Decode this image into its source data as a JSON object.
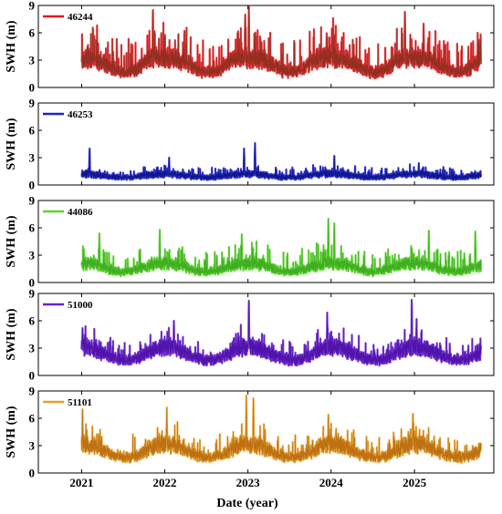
{
  "chart_data": {
    "type": "line",
    "xlabel": "Date (year)",
    "ylabel": "SWH (m)",
    "x_range": [
      "2020-06-25",
      "2025-12-15"
    ],
    "ylim": [
      0,
      9
    ],
    "x_ticks": [
      "2021",
      "2022",
      "2023",
      "2024",
      "2025"
    ],
    "y_ticks": [
      "0",
      "3",
      "6",
      "9"
    ],
    "grid": false,
    "legend_position": "top-left",
    "panels": [
      {
        "series_name": "46244",
        "color": "#e8171d",
        "line_color": "#8b2d1e",
        "start": "2021-01-01",
        "end": "2025-10-20",
        "monthly_mean": [
          3.1,
          3.0,
          2.9,
          2.5,
          2.1,
          1.6,
          1.4,
          1.4,
          1.8,
          2.5,
          3.0,
          3.2
        ],
        "amplitude": 1.3,
        "peaks": [
          {
            "date": "2021-11-10",
            "value": 8.5
          },
          {
            "date": "2022-12-20",
            "value": 8.0
          },
          {
            "date": "2023-01-05",
            "value": 8.9
          },
          {
            "date": "2024-01-10",
            "value": 7.6
          },
          {
            "date": "2024-11-20",
            "value": 8.3
          },
          {
            "date": "2025-02-10",
            "value": 7.0
          }
        ]
      },
      {
        "series_name": "46253",
        "color": "#1f22cc",
        "line_color": "#0a1288",
        "start": "2021-01-01",
        "end": "2025-10-20",
        "monthly_mean": [
          1.2,
          1.2,
          1.1,
          1.0,
          0.9,
          0.8,
          0.8,
          0.8,
          0.9,
          1.0,
          1.1,
          1.2
        ],
        "amplitude": 0.35,
        "peaks": [
          {
            "date": "2021-02-05",
            "value": 4.0
          },
          {
            "date": "2022-01-20",
            "value": 3.0
          },
          {
            "date": "2022-12-15",
            "value": 4.0
          },
          {
            "date": "2023-02-01",
            "value": 4.6
          },
          {
            "date": "2024-01-15",
            "value": 3.2
          },
          {
            "date": "2025-01-20",
            "value": 2.4
          }
        ]
      },
      {
        "series_name": "44086",
        "color": "#5bd52b",
        "line_color": "#3aa81c",
        "start": "2021-01-01",
        "end": "2025-10-20",
        "monthly_mean": [
          2.0,
          2.0,
          1.9,
          1.6,
          1.3,
          1.1,
          1.0,
          1.1,
          1.3,
          1.6,
          1.8,
          2.0
        ],
        "amplitude": 0.8,
        "peaks": [
          {
            "date": "2021-03-20",
            "value": 5.4
          },
          {
            "date": "2021-12-10",
            "value": 5.8
          },
          {
            "date": "2022-12-05",
            "value": 5.3
          },
          {
            "date": "2023-12-20",
            "value": 7.0
          },
          {
            "date": "2024-01-15",
            "value": 6.5
          },
          {
            "date": "2025-03-05",
            "value": 5.7
          },
          {
            "date": "2025-09-25",
            "value": 5.6
          }
        ]
      },
      {
        "series_name": "51000",
        "color": "#6a1fd0",
        "line_color": "#4a10a8",
        "start": "2021-01-01",
        "end": "2025-10-20",
        "monthly_mean": [
          3.2,
          3.1,
          2.9,
          2.5,
          2.1,
          1.8,
          1.6,
          1.6,
          1.8,
          2.2,
          2.7,
          3.1
        ],
        "amplitude": 0.7,
        "peaks": [
          {
            "date": "2021-01-05",
            "value": 5.2
          },
          {
            "date": "2022-02-10",
            "value": 6.0
          },
          {
            "date": "2023-01-05",
            "value": 8.2
          },
          {
            "date": "2023-12-15",
            "value": 6.9
          },
          {
            "date": "2024-12-20",
            "value": 8.3
          },
          {
            "date": "2025-01-10",
            "value": 6.2
          }
        ]
      },
      {
        "series_name": "51101",
        "color": "#e7a12a",
        "line_color": "#b86a0c",
        "start": "2021-01-01",
        "end": "2025-10-20",
        "monthly_mean": [
          3.2,
          3.1,
          2.9,
          2.5,
          2.1,
          1.8,
          1.6,
          1.6,
          1.8,
          2.2,
          2.7,
          3.1
        ],
        "amplitude": 0.8,
        "peaks": [
          {
            "date": "2021-01-05",
            "value": 7.0
          },
          {
            "date": "2022-01-10",
            "value": 7.2
          },
          {
            "date": "2022-12-25",
            "value": 8.5
          },
          {
            "date": "2023-01-25",
            "value": 8.2
          },
          {
            "date": "2023-12-20",
            "value": 6.4
          },
          {
            "date": "2024-12-25",
            "value": 6.5
          }
        ]
      }
    ]
  }
}
